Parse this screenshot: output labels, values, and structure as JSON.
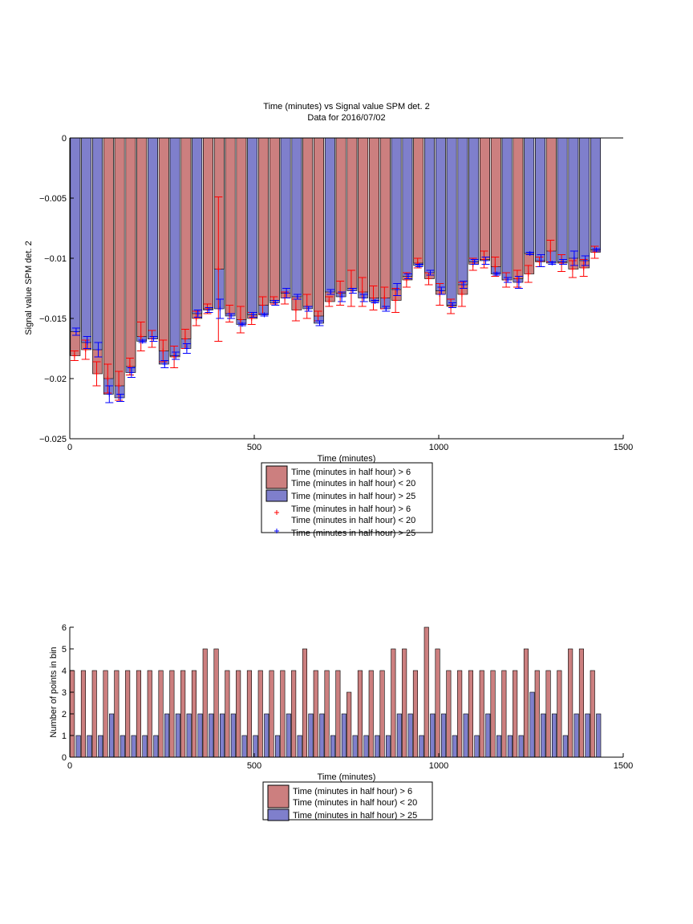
{
  "chart_data": [
    {
      "type": "bar",
      "title": "Time (minutes) vs Signal value SPM det. 2",
      "subtitle": "Data for 2016/07/02",
      "xlabel": "Time (minutes)",
      "ylabel": "Signal value SPM det. 2",
      "xlim": [
        0,
        1500
      ],
      "ylim": [
        -0.025,
        0
      ],
      "xticks": [
        0,
        500,
        1000,
        1500
      ],
      "yticks": [
        0,
        -0.005,
        -0.01,
        -0.015,
        -0.02,
        -0.025
      ],
      "xtick_labels": [
        "0",
        "500",
        "1000",
        "1500"
      ],
      "ytick_labels": [
        "0",
        "−0.005",
        "−0.01",
        "−0.015",
        "−0.02",
        "−0.025"
      ],
      "grid": false,
      "legend_position": "below",
      "legend": [
        {
          "label": "Time (minutes in half hour) > 6\nTime (minutes in half hour) < 20",
          "color": "#cc7f7f",
          "kind": "patch"
        },
        {
          "label": "Time (minutes in half hour) > 25",
          "color": "#7f7fcc",
          "kind": "patch"
        },
        {
          "label": "Time (minutes in half hour) > 6\nTime (minutes in half hour) < 20",
          "color": "#ff0000",
          "kind": "marker"
        },
        {
          "label": "Time (minutes in half hour) > 25",
          "color": "#0000ff",
          "kind": "marker"
        }
      ],
      "x": [
        15,
        45,
        75,
        105,
        135,
        165,
        195,
        225,
        255,
        285,
        315,
        345,
        375,
        405,
        435,
        465,
        495,
        525,
        555,
        585,
        615,
        645,
        675,
        705,
        735,
        765,
        795,
        825,
        855,
        885,
        915,
        945,
        975,
        1005,
        1035,
        1065,
        1095,
        1125,
        1155,
        1185,
        1215,
        1245,
        1275,
        1305,
        1335,
        1365,
        1395,
        1425
      ],
      "series": [
        {
          "name": "Time (minutes in half hour) > 6\nTime (minutes in half hour) < 20",
          "color": "#cc7f7f",
          "values": [
            -0.0181,
            -0.0176,
            -0.0196,
            -0.02,
            -0.0206,
            -0.019,
            -0.0165,
            -0.0167,
            -0.0177,
            -0.0182,
            -0.0167,
            -0.015,
            -0.0142,
            -0.0109,
            -0.0146,
            -0.0151,
            -0.015,
            -0.0139,
            -0.0135,
            -0.0133,
            -0.0143,
            -0.014,
            -0.0148,
            -0.0136,
            -0.0129,
            -0.0125,
            -0.0128,
            -0.0133,
            -0.0133,
            -0.0135,
            -0.0118,
            -0.0104,
            -0.0117,
            -0.013,
            -0.014,
            -0.013,
            -0.0105,
            -0.0101,
            -0.0107,
            -0.0118,
            -0.0117,
            -0.0113,
            -0.0103,
            -0.0094,
            -0.0104,
            -0.0109,
            -0.0108,
            -0.0095
          ],
          "errors": [
            0.0004,
            0.0008,
            0.001,
            0.0012,
            0.0012,
            0.0007,
            0.0012,
            0.0007,
            0.0009,
            0.0009,
            0.0008,
            0.0006,
            0.0004,
            0.006,
            0.0007,
            0.0011,
            0.0005,
            0.0007,
            0.0003,
            0.0005,
            0.0009,
            0.001,
            0.0004,
            0.0004,
            0.001,
            0.0015,
            0.0012,
            0.001,
            0.0009,
            0.001,
            0.0006,
            0.0004,
            0.0005,
            0.0009,
            0.0006,
            0.001,
            0.0005,
            0.0007,
            0.0008,
            0.0006,
            0.0007,
            0.0007,
            0.0004,
            0.0009,
            0.0007,
            0.0007,
            0.0007,
            0.0005
          ]
        },
        {
          "name": "Time (minutes in half hour) > 25",
          "color": "#7f7fcc",
          "values": [
            -0.0161,
            -0.017,
            -0.0176,
            -0.0213,
            -0.0216,
            -0.0195,
            -0.0169,
            -0.0167,
            -0.0188,
            -0.0181,
            -0.0175,
            -0.0146,
            -0.0143,
            -0.0142,
            -0.0148,
            -0.0155,
            -0.0147,
            -0.0147,
            -0.0137,
            -0.0129,
            -0.0132,
            -0.0142,
            -0.0154,
            -0.0128,
            -0.0132,
            -0.0127,
            -0.0133,
            -0.0136,
            -0.0142,
            -0.0126,
            -0.0115,
            -0.0106,
            -0.0112,
            -0.0127,
            -0.0139,
            -0.0122,
            -0.0103,
            -0.0102,
            -0.0113,
            -0.0118,
            -0.012,
            -0.0096,
            -0.0102,
            -0.0104,
            -0.0103,
            -0.01,
            -0.0102,
            -0.0093
          ],
          "errors": [
            0.0003,
            0.0005,
            0.0006,
            0.0007,
            0.0003,
            0.0004,
            0.0001,
            0.0002,
            0.0003,
            0.0003,
            0.0004,
            0.0003,
            0.0002,
            0.0008,
            0.0002,
            0.0001,
            0.0002,
            0.0001,
            0.0002,
            0.0004,
            0.0002,
            0.0002,
            0.0002,
            0.0002,
            0.0004,
            0.0002,
            0.0003,
            0.0001,
            0.0002,
            0.0005,
            0.0002,
            0.0001,
            0.0002,
            0.0003,
            0.0002,
            0.0003,
            0.0002,
            0.0003,
            0.0001,
            0.0002,
            0.0005,
            0.0001,
            0.0005,
            0.0001,
            0.0002,
            0.0006,
            0.0004,
            0.0001
          ]
        }
      ]
    },
    {
      "type": "bar",
      "title": "",
      "xlabel": "Time (minutes)",
      "ylabel": "Number of points in bin",
      "xlim": [
        0,
        1500
      ],
      "ylim": [
        0,
        6
      ],
      "xticks": [
        0,
        500,
        1000,
        1500
      ],
      "yticks": [
        0,
        1,
        2,
        3,
        4,
        5,
        6
      ],
      "xtick_labels": [
        "0",
        "500",
        "1000",
        "1500"
      ],
      "ytick_labels": [
        "0",
        "1",
        "2",
        "3",
        "4",
        "5",
        "6"
      ],
      "grid": false,
      "legend_position": "below",
      "legend": [
        {
          "label": "Time (minutes in half hour) > 6\nTime (minutes in half hour) < 20",
          "color": "#cc7f7f",
          "kind": "patch"
        },
        {
          "label": "Time (minutes in half hour) > 25",
          "color": "#7f7fcc",
          "kind": "patch"
        }
      ],
      "x": [
        15,
        45,
        75,
        105,
        135,
        165,
        195,
        225,
        255,
        285,
        315,
        345,
        375,
        405,
        435,
        465,
        495,
        525,
        555,
        585,
        615,
        645,
        675,
        705,
        735,
        765,
        795,
        825,
        855,
        885,
        915,
        945,
        975,
        1005,
        1035,
        1065,
        1095,
        1125,
        1155,
        1185,
        1215,
        1245,
        1275,
        1305,
        1335,
        1365,
        1395,
        1425
      ],
      "series": [
        {
          "name": "Time (minutes in half hour) > 6\nTime (minutes in half hour) < 20",
          "color": "#cc7f7f",
          "values": [
            4,
            4,
            4,
            4,
            4,
            4,
            4,
            4,
            4,
            4,
            4,
            4,
            5,
            5,
            4,
            4,
            4,
            4,
            4,
            4,
            4,
            5,
            4,
            4,
            4,
            3,
            4,
            4,
            4,
            5,
            5,
            4,
            6,
            5,
            4,
            4,
            4,
            4,
            4,
            4,
            4,
            5,
            4,
            4,
            4,
            5,
            5,
            4
          ]
        },
        {
          "name": "Time (minutes in half hour) > 25",
          "color": "#7f7fcc",
          "values": [
            1,
            1,
            1,
            2,
            1,
            1,
            1,
            1,
            2,
            2,
            2,
            2,
            2,
            2,
            2,
            1,
            1,
            2,
            1,
            2,
            1,
            2,
            2,
            1,
            2,
            1,
            1,
            1,
            1,
            2,
            2,
            1,
            2,
            2,
            1,
            2,
            1,
            2,
            1,
            1,
            1,
            3,
            2,
            2,
            1,
            2,
            2,
            2
          ]
        }
      ]
    }
  ]
}
